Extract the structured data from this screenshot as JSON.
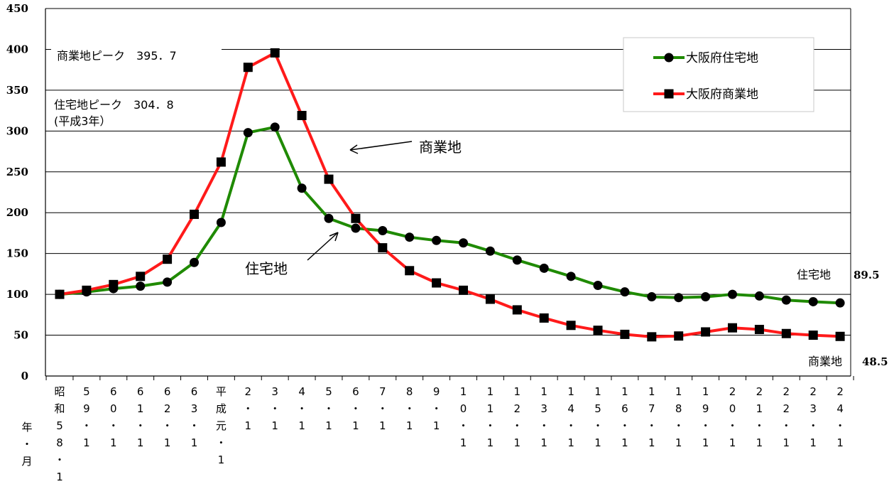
{
  "colors": {
    "residential": "#1f8a00",
    "commercial": "#ff1a1a",
    "marker": "#000000",
    "grid": "#000000"
  },
  "chart_data": {
    "type": "line",
    "categories": [
      "昭和58・1",
      "59・1",
      "60・1",
      "61・1",
      "62・1",
      "63・1",
      "平成元・1",
      "2・1",
      "3・1",
      "4・1",
      "5・1",
      "6・1",
      "7・1",
      "8・1",
      "9・1",
      "10・1",
      "11・1",
      "12・1",
      "13・1",
      "14・1",
      "15・1",
      "16・1",
      "17・1",
      "18・1",
      "19・1",
      "20・1",
      "21・1",
      "22・1",
      "23・1",
      "24・1"
    ],
    "tick_labels": [
      [
        "昭",
        "和",
        "5",
        "8",
        "・",
        "1"
      ],
      [
        "5",
        "9",
        "・",
        "1"
      ],
      [
        "6",
        "0",
        "・",
        "1"
      ],
      [
        "6",
        "1",
        "・",
        "1"
      ],
      [
        "6",
        "2",
        "・",
        "1"
      ],
      [
        "6",
        "3",
        "・",
        "1"
      ],
      [
        "平",
        "成",
        "元",
        "・",
        "1"
      ],
      [
        "2",
        "・",
        "1"
      ],
      [
        "3",
        "・",
        "1"
      ],
      [
        "4",
        "・",
        "1"
      ],
      [
        "5",
        "・",
        "1"
      ],
      [
        "6",
        "・",
        "1"
      ],
      [
        "7",
        "・",
        "1"
      ],
      [
        "8",
        "・",
        "1"
      ],
      [
        "9",
        "・",
        "1"
      ],
      [
        "1",
        "0",
        "・",
        "1"
      ],
      [
        "1",
        "1",
        "・",
        "1"
      ],
      [
        "1",
        "2",
        "・",
        "1"
      ],
      [
        "1",
        "3",
        "・",
        "1"
      ],
      [
        "1",
        "4",
        "・",
        "1"
      ],
      [
        "1",
        "5",
        "・",
        "1"
      ],
      [
        "1",
        "6",
        "・",
        "1"
      ],
      [
        "1",
        "7",
        "・",
        "1"
      ],
      [
        "1",
        "8",
        "・",
        "1"
      ],
      [
        "1",
        "9",
        "・",
        "1"
      ],
      [
        "2",
        "0",
        "・",
        "1"
      ],
      [
        "2",
        "1",
        "・",
        "1"
      ],
      [
        "2",
        "2",
        "・",
        "1"
      ],
      [
        "2",
        "3",
        "・",
        "1"
      ],
      [
        "2",
        "4",
        "・",
        "1"
      ]
    ],
    "xlabel": [
      "年",
      "・",
      "月"
    ],
    "ylim": [
      0,
      450
    ],
    "yticks": [
      "0",
      "50",
      "100",
      "150",
      "200",
      "250",
      "300",
      "350",
      "400",
      "450"
    ],
    "grid": "horizontal",
    "legend_position": "top-right",
    "series": [
      {
        "name": "大阪府住宅地",
        "marker": "circle",
        "values": [
          100,
          103,
          107,
          110,
          115,
          139,
          188,
          298,
          304.8,
          230,
          193,
          181,
          178,
          170,
          166,
          163,
          153,
          142,
          132,
          122,
          111,
          103,
          97,
          96,
          97,
          100,
          98,
          93,
          91,
          89.5
        ]
      },
      {
        "name": "大阪府商業地",
        "marker": "square",
        "values": [
          100,
          105,
          112,
          122,
          143,
          198,
          262,
          378,
          395.7,
          319,
          241,
          193,
          157,
          129,
          114,
          105,
          94,
          81,
          71,
          62,
          56,
          51,
          48,
          49,
          54,
          59,
          57,
          52,
          50,
          48.5
        ]
      }
    ],
    "annotations": {
      "commercial_peak": "商業地ピーク　395．7",
      "residential_peak": "住宅地ピーク　304．8",
      "residential_peak_note": "(平成3年）",
      "commercial_label": "商業地",
      "residential_label": "住宅地",
      "end_residential_name": "住宅地",
      "end_residential_value": "89.5",
      "end_commercial_name": "商業地",
      "end_commercial_value": "48.5"
    }
  }
}
